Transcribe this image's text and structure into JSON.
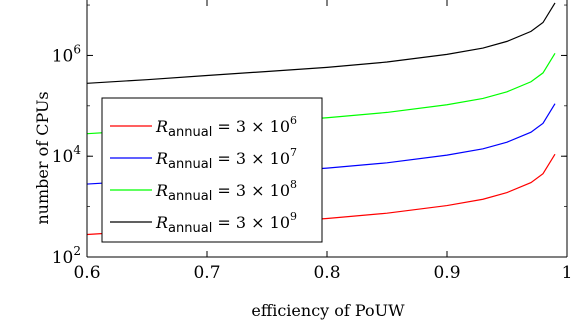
{
  "chart_data": {
    "type": "line",
    "xlabel": "efficiency of PoUW",
    "ylabel": "number of CPUs",
    "xlim": [
      0.6,
      1.0
    ],
    "ylim_exponent": [
      2,
      7.1
    ],
    "y_scale": "log",
    "grid": false,
    "legend_placement": "bottom-left",
    "x_ticks": [
      "0.6",
      "0.7",
      "0.8",
      "0.9",
      "1"
    ],
    "y_ticks": [
      {
        "base": "10",
        "exp": "2"
      },
      {
        "base": "10",
        "exp": "4"
      },
      {
        "base": "10",
        "exp": "6"
      }
    ],
    "x": [
      0.6,
      0.65,
      0.7,
      0.75,
      0.8,
      0.85,
      0.9,
      0.93,
      0.95,
      0.97,
      0.98,
      0.99
    ],
    "series": [
      {
        "name_main": "R",
        "name_sub": "annual",
        "name_rest": " = 3 × 10",
        "name_exp": "6",
        "color": "#ff0000",
        "values": [
          280,
          330,
          400,
          480,
          580,
          740,
          1050,
          1400,
          1900,
          3000,
          4500,
          11000
        ]
      },
      {
        "name_main": "R",
        "name_sub": "annual",
        "name_rest": " = 3 × 10",
        "name_exp": "7",
        "color": "#0000ff",
        "values": [
          2800,
          3300,
          4000,
          4800,
          5800,
          7400,
          10500,
          14000,
          19000,
          30000,
          45000,
          110000
        ]
      },
      {
        "name_main": "R",
        "name_sub": "annual",
        "name_rest": " = 3 × 10",
        "name_exp": "8",
        "color": "#00ff00",
        "values": [
          28000,
          33000,
          40000,
          48000,
          58000,
          74000,
          105000,
          140000,
          190000,
          300000,
          450000,
          1100000
        ]
      },
      {
        "name_main": "R",
        "name_sub": "annual",
        "name_rest": " = 3 × 10",
        "name_exp": "9",
        "color": "#000000",
        "values": [
          280000,
          330000,
          400000,
          480000,
          580000,
          740000,
          1050000,
          1400000,
          1900000,
          3000000,
          4500000,
          11000000
        ]
      }
    ]
  }
}
